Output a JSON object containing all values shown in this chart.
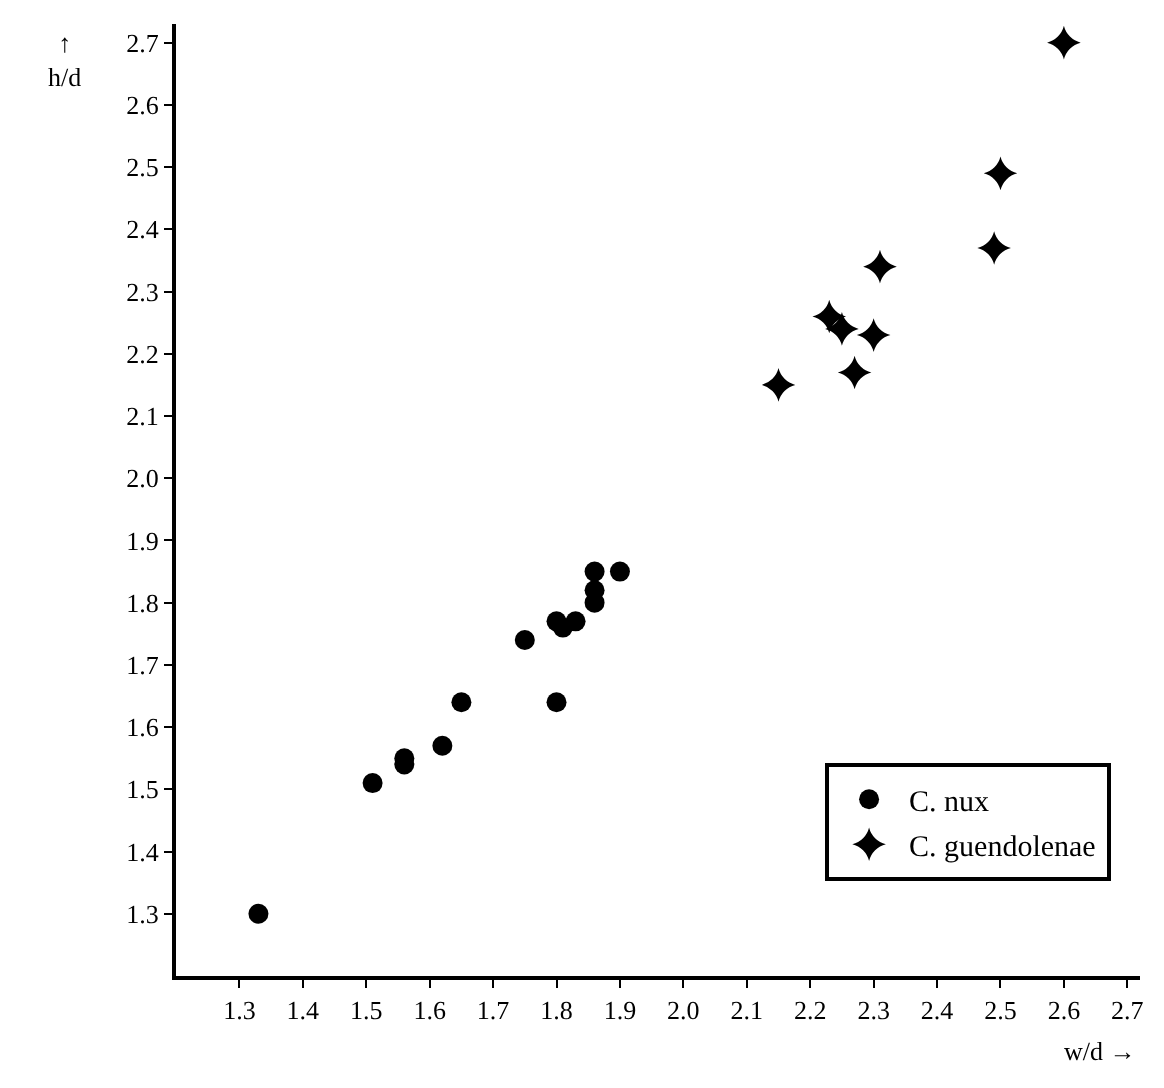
{
  "chart_data": {
    "type": "scatter",
    "xlabel": "w/d →",
    "ylabel": "↑\nh/d",
    "series": [
      {
        "name": "C. nux",
        "color": "#000000",
        "marker": "circle",
        "x": [
          1.33,
          1.51,
          1.56,
          1.56,
          1.62,
          1.65,
          1.75,
          1.8,
          1.8,
          1.81,
          1.83,
          1.86,
          1.86,
          1.86,
          1.9
        ],
        "values": [
          1.3,
          1.51,
          1.55,
          1.54,
          1.57,
          1.64,
          1.74,
          1.64,
          1.77,
          1.76,
          1.77,
          1.8,
          1.82,
          1.85,
          1.85
        ]
      },
      {
        "name": "C. guendolenae",
        "color": "#000000",
        "marker": "star",
        "x": [
          2.15,
          2.27,
          2.23,
          2.25,
          2.3,
          2.31,
          2.49,
          2.5,
          2.6
        ],
        "values": [
          2.15,
          2.17,
          2.26,
          2.24,
          2.23,
          2.34,
          2.37,
          2.49,
          2.7
        ]
      }
    ],
    "xlim": [
      1.2,
      2.72
    ],
    "ylim": [
      1.2,
      2.73
    ],
    "xticks": [
      1.3,
      1.4,
      1.5,
      1.6,
      1.7,
      1.8,
      1.9,
      {
        "value": 2,
        "label": "2.0"
      },
      2.1,
      2.2,
      2.3,
      2.4,
      2.5,
      2.6,
      2.7
    ],
    "yticks": [
      1.3,
      1.4,
      1.5,
      1.6,
      1.7,
      1.8,
      1.9,
      {
        "value": 2,
        "label": "2.0"
      },
      2.1,
      2.2,
      2.3,
      2.4,
      2.5,
      2.6,
      2.7
    ],
    "legend": "bottom right"
  }
}
